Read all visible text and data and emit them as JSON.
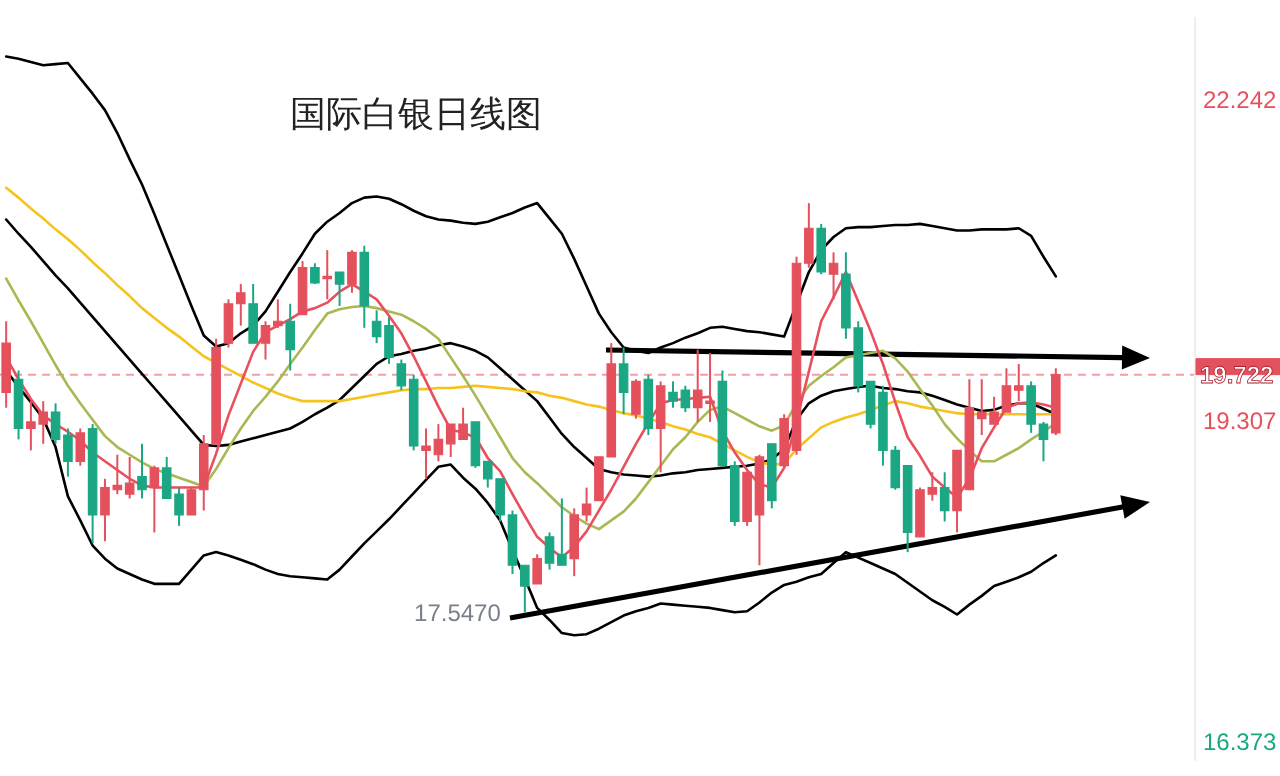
{
  "chart_data": {
    "type": "candlestick",
    "title": "国际白银日线图",
    "categories": [
      null,
      null,
      null,
      null,
      null,
      null,
      null,
      null,
      null,
      null,
      null,
      null,
      null,
      null,
      null,
      null,
      null,
      null,
      null,
      null,
      null,
      null,
      null,
      null,
      null,
      null,
      null,
      null,
      null,
      null,
      null,
      null,
      null,
      null,
      null,
      null,
      null,
      null,
      null,
      null,
      null,
      null,
      null,
      null,
      null,
      null,
      null,
      null,
      null,
      null,
      null,
      null,
      null,
      null,
      null,
      null,
      null,
      null,
      null,
      null,
      null,
      null,
      null,
      null,
      null,
      null,
      null,
      null,
      null,
      null,
      null,
      null,
      null,
      null,
      null,
      null,
      null,
      null,
      null,
      null,
      null,
      null,
      null,
      null,
      null,
      null
    ],
    "ohlc": [
      [
        19.56,
        20.21,
        19.42,
        20.01
      ],
      [
        19.68,
        19.76,
        19.13,
        19.23
      ],
      [
        19.23,
        19.48,
        19.03,
        19.29
      ],
      [
        19.27,
        19.48,
        19.09,
        19.38
      ],
      [
        19.38,
        19.46,
        19.09,
        19.13
      ],
      [
        19.17,
        19.23,
        18.79,
        18.93
      ],
      [
        18.93,
        19.23,
        18.89,
        19.19
      ],
      [
        19.23,
        19.27,
        18.18,
        18.44
      ],
      [
        18.44,
        18.77,
        18.2,
        18.69
      ],
      [
        18.67,
        18.99,
        18.63,
        18.71
      ],
      [
        18.63,
        18.97,
        18.59,
        18.73
      ],
      [
        18.79,
        19.09,
        18.59,
        18.67
      ],
      [
        18.69,
        18.89,
        18.28,
        18.87
      ],
      [
        18.87,
        18.97,
        18.59,
        18.59
      ],
      [
        18.63,
        18.69,
        18.34,
        18.44
      ],
      [
        18.44,
        18.69,
        18.44,
        18.67
      ],
      [
        18.67,
        19.17,
        18.48,
        19.09
      ],
      [
        19.09,
        20.05,
        19.09,
        19.97
      ],
      [
        20.01,
        20.41,
        19.97,
        20.37
      ],
      [
        20.37,
        20.55,
        20.17,
        20.47
      ],
      [
        20.37,
        20.55,
        20.01,
        20.01
      ],
      [
        20.01,
        20.21,
        19.86,
        20.17
      ],
      [
        20.17,
        20.41,
        20.15,
        20.21
      ],
      [
        20.21,
        20.37,
        19.76,
        19.95
      ],
      [
        20.27,
        20.76,
        20.27,
        20.7
      ],
      [
        20.7,
        20.74,
        20.55,
        20.56
      ],
      [
        20.6,
        20.86,
        20.41,
        20.62
      ],
      [
        20.66,
        20.66,
        20.35,
        20.55
      ],
      [
        20.55,
        20.86,
        20.47,
        20.84
      ],
      [
        20.84,
        20.9,
        20.15,
        20.35
      ],
      [
        20.21,
        20.31,
        20.01,
        20.07
      ],
      [
        20.17,
        20.25,
        19.82,
        19.88
      ],
      [
        19.82,
        19.86,
        19.58,
        19.62
      ],
      [
        19.68,
        19.72,
        19.03,
        19.07
      ],
      [
        19.03,
        19.23,
        18.77,
        19.07
      ],
      [
        18.99,
        19.27,
        18.93,
        19.13
      ],
      [
        19.09,
        19.27,
        18.97,
        19.27
      ],
      [
        19.13,
        19.42,
        19.13,
        19.27
      ],
      [
        19.29,
        19.29,
        18.87,
        18.89
      ],
      [
        18.93,
        18.93,
        18.69,
        18.77
      ],
      [
        18.77,
        18.77,
        18.38,
        18.44
      ],
      [
        18.44,
        18.48,
        17.9,
        17.98
      ],
      [
        17.98,
        17.98,
        17.547,
        17.79
      ],
      [
        17.81,
        18.08,
        17.81,
        18.04
      ],
      [
        18.24,
        18.28,
        17.94,
        18.0
      ],
      [
        18.08,
        18.59,
        17.98,
        17.98
      ],
      [
        18.04,
        18.5,
        17.88,
        18.44
      ],
      [
        18.44,
        18.69,
        18.38,
        18.54
      ],
      [
        18.57,
        18.97,
        18.57,
        18.97
      ],
      [
        18.97,
        20.01,
        18.97,
        19.82
      ],
      [
        19.82,
        19.97,
        19.36,
        19.56
      ],
      [
        19.36,
        19.68,
        19.32,
        19.66
      ],
      [
        19.68,
        19.72,
        19.17,
        19.23
      ],
      [
        19.23,
        19.66,
        18.83,
        19.62
      ],
      [
        19.56,
        19.66,
        19.42,
        19.48
      ],
      [
        19.58,
        19.62,
        19.38,
        19.42
      ],
      [
        19.42,
        19.95,
        19.29,
        19.58
      ],
      [
        19.46,
        19.92,
        19.29,
        19.48
      ],
      [
        19.66,
        19.76,
        18.89,
        18.89
      ],
      [
        18.89,
        18.93,
        18.34,
        18.38
      ],
      [
        18.38,
        18.83,
        18.34,
        18.83
      ],
      [
        18.44,
        18.99,
        17.98,
        18.97
      ],
      [
        19.09,
        19.09,
        18.5,
        18.57
      ],
      [
        18.89,
        19.36,
        18.87,
        19.32
      ],
      [
        19.03,
        20.8,
        18.99,
        20.74
      ],
      [
        20.74,
        21.29,
        20.7,
        21.06
      ],
      [
        21.06,
        21.1,
        20.64,
        20.66
      ],
      [
        20.64,
        20.84,
        20.41,
        20.74
      ],
      [
        20.64,
        20.84,
        20.05,
        20.15
      ],
      [
        20.15,
        20.21,
        19.56,
        19.62
      ],
      [
        19.66,
        19.66,
        19.23,
        19.27
      ],
      [
        19.56,
        19.62,
        18.89,
        19.03
      ],
      [
        19.03,
        19.07,
        18.67,
        18.69
      ],
      [
        18.89,
        18.89,
        18.1,
        18.28
      ],
      [
        18.24,
        18.69,
        18.24,
        18.67
      ],
      [
        18.63,
        18.83,
        18.57,
        18.69
      ],
      [
        18.69,
        18.83,
        18.38,
        18.48
      ],
      [
        18.48,
        19.03,
        18.28,
        19.03
      ],
      [
        18.67,
        19.68,
        18.67,
        19.42
      ],
      [
        19.32,
        19.68,
        19.17,
        19.38
      ],
      [
        19.27,
        19.52,
        19.27,
        19.38
      ],
      [
        19.38,
        19.78,
        19.38,
        19.62
      ],
      [
        19.58,
        19.82,
        19.48,
        19.62
      ],
      [
        19.62,
        19.66,
        19.19,
        19.27
      ],
      [
        19.27,
        19.29,
        18.93,
        19.13
      ],
      [
        19.19,
        19.78,
        19.17,
        19.722
      ]
    ],
    "ylim": [
      16.2,
      23.0
    ],
    "yticks": [
      16.373,
      19.307,
      22.242
    ],
    "tick_labels": "y",
    "grid": false,
    "ref_lines": [
      {
        "axis": "y",
        "value": 19.722,
        "label": "19.722",
        "color": "#e5505d",
        "line_style": "dashed"
      }
    ],
    "annotations": [
      "17.5470"
    ],
    "series": [
      {
        "type": "line",
        "color": "#000000",
        "values": [
          22.63,
          22.61,
          22.58,
          22.55,
          22.56,
          22.57,
          22.43,
          22.29,
          22.14,
          21.93,
          21.69,
          21.46,
          21.19,
          20.91,
          20.63,
          20.35,
          20.08,
          19.98,
          20.01,
          20.1,
          20.17,
          20.3,
          20.48,
          20.66,
          20.83,
          21.01,
          21.12,
          21.2,
          21.29,
          21.34,
          21.35,
          21.33,
          21.28,
          21.22,
          21.17,
          21.14,
          21.13,
          21.11,
          21.1,
          21.12,
          21.16,
          21.2,
          21.25,
          21.29,
          21.15,
          21.01,
          20.78,
          20.53,
          20.28,
          20.11,
          19.97,
          19.94,
          19.92,
          19.97,
          20.01,
          20.06,
          20.1,
          20.15,
          20.16,
          20.14,
          20.12,
          20.11,
          20.09,
          20.07,
          null,
          20.66,
          20.86,
          20.98,
          21.06,
          21.07,
          21.07,
          21.08,
          21.09,
          21.09,
          21.1,
          21.08,
          21.06,
          21.04,
          21.04,
          21.05,
          21.05,
          21.05,
          21.06,
          20.99,
          20.8,
          20.62
        ]
      },
      {
        "type": "line",
        "color": "#000000",
        "values": [
          21.14,
          21.01,
          20.89,
          20.76,
          20.63,
          20.51,
          20.38,
          20.25,
          20.12,
          19.99,
          19.86,
          19.73,
          19.6,
          19.47,
          19.34,
          19.21,
          19.08,
          19.07,
          19.08,
          19.11,
          19.14,
          19.17,
          19.2,
          19.23,
          19.29,
          19.36,
          19.42,
          19.49,
          19.6,
          19.71,
          19.82,
          19.89,
          19.91,
          19.94,
          19.96,
          19.99,
          20.01,
          19.98,
          19.94,
          19.88,
          19.78,
          19.68,
          19.58,
          19.48,
          19.33,
          19.18,
          19.06,
          18.96,
          18.86,
          18.83,
          18.81,
          18.8,
          18.79,
          18.8,
          18.82,
          18.83,
          18.85,
          18.86,
          18.87,
          18.88,
          18.89,
          18.91,
          18.95,
          19.04,
          19.31,
          19.46,
          19.53,
          19.57,
          19.59,
          19.61,
          19.62,
          19.6,
          19.59,
          19.57,
          19.56,
          19.53,
          19.49,
          19.45,
          19.42,
          19.39,
          19.4,
          19.44,
          19.46,
          19.46,
          19.41,
          19.36
        ]
      },
      {
        "type": "line",
        "color": "#000000",
        "values": [
          19.76,
          19.61,
          19.47,
          19.32,
          19.06,
          18.61,
          18.39,
          18.16,
          18.04,
          17.95,
          17.9,
          17.85,
          17.81,
          17.81,
          17.81,
          17.94,
          18.07,
          18.1,
          18.07,
          18.03,
          17.99,
          17.94,
          17.9,
          17.88,
          17.87,
          17.86,
          17.85,
          17.94,
          18.06,
          18.18,
          18.29,
          18.4,
          18.52,
          18.64,
          18.76,
          18.88,
          18.9,
          18.78,
          18.68,
          18.55,
          18.39,
          18.12,
          17.86,
          17.59,
          17.48,
          17.36,
          17.34,
          17.35,
          17.4,
          17.46,
          17.52,
          17.56,
          17.59,
          17.63,
          17.62,
          17.61,
          17.6,
          17.59,
          17.57,
          17.55,
          17.56,
          17.64,
          17.73,
          17.8,
          17.83,
          17.87,
          17.9,
          18.0,
          18.1,
          18.05,
          18.0,
          17.95,
          17.9,
          17.82,
          17.74,
          17.66,
          17.6,
          17.53,
          17.62,
          17.7,
          17.79,
          17.83,
          17.87,
          17.92,
          18.0,
          18.07
        ]
      },
      {
        "type": "line",
        "color": "#f5c31c",
        "values": [
          21.43,
          21.34,
          21.24,
          21.15,
          21.05,
          20.96,
          20.86,
          20.75,
          20.65,
          20.54,
          20.44,
          20.33,
          20.24,
          20.15,
          20.07,
          19.98,
          19.89,
          19.83,
          19.77,
          19.71,
          19.65,
          19.6,
          19.55,
          19.51,
          19.48,
          19.48,
          19.48,
          19.48,
          19.5,
          19.52,
          19.54,
          19.56,
          19.58,
          19.59,
          19.59,
          19.6,
          19.6,
          19.61,
          19.62,
          19.61,
          19.6,
          19.59,
          19.57,
          19.56,
          19.53,
          19.51,
          19.48,
          19.45,
          19.43,
          19.4,
          19.37,
          19.35,
          19.32,
          19.29,
          19.25,
          19.22,
          19.18,
          19.15,
          19.09,
          19.03,
          18.97,
          18.92,
          18.9,
          18.91,
          19.04,
          19.14,
          19.24,
          19.29,
          19.33,
          19.36,
          19.4,
          19.44,
          19.48,
          19.46,
          19.43,
          19.41,
          19.39,
          19.37,
          19.36,
          19.36,
          19.36,
          19.36,
          19.36,
          19.36,
          19.36,
          19.36
        ]
      },
      {
        "type": "line",
        "color": "#a9b852",
        "values": [
          20.6,
          20.4,
          20.21,
          20.01,
          19.81,
          19.62,
          19.46,
          19.31,
          19.16,
          19.06,
          18.99,
          18.92,
          18.86,
          18.82,
          18.78,
          18.74,
          18.7,
          18.86,
          19.05,
          19.23,
          19.39,
          19.52,
          19.66,
          19.82,
          19.97,
          20.13,
          20.28,
          20.32,
          20.34,
          20.35,
          20.33,
          20.3,
          20.27,
          20.21,
          20.14,
          20.05,
          19.88,
          19.71,
          19.53,
          19.34,
          19.15,
          18.96,
          18.83,
          18.73,
          18.62,
          18.51,
          18.43,
          18.36,
          18.31,
          18.39,
          18.47,
          18.59,
          18.74,
          18.89,
          19.04,
          19.15,
          19.29,
          19.4,
          19.43,
          19.37,
          19.31,
          19.25,
          19.21,
          19.26,
          19.46,
          19.62,
          19.71,
          19.79,
          19.88,
          19.9,
          19.92,
          19.94,
          19.87,
          19.75,
          19.59,
          19.44,
          19.27,
          19.14,
          19.03,
          18.93,
          18.93,
          18.99,
          19.05,
          19.13,
          19.2,
          19.28
        ]
      },
      {
        "type": "line",
        "color": "#e8505d",
        "values": [
          19.88,
          19.68,
          19.5,
          19.35,
          19.27,
          19.2,
          19.12,
          19.01,
          18.93,
          18.85,
          18.77,
          18.71,
          18.69,
          18.69,
          18.69,
          18.69,
          18.69,
          19.0,
          19.35,
          19.64,
          19.93,
          20.11,
          20.17,
          20.23,
          20.3,
          20.33,
          20.38,
          20.48,
          20.55,
          20.48,
          20.41,
          20.26,
          20.1,
          19.89,
          19.66,
          19.43,
          19.22,
          19.19,
          19.15,
          18.96,
          18.84,
          18.63,
          18.43,
          18.24,
          18.14,
          18.05,
          18.15,
          18.29,
          18.48,
          18.67,
          18.88,
          19.09,
          19.28,
          19.46,
          19.49,
          19.5,
          19.51,
          19.52,
          19.21,
          19.01,
          18.85,
          18.72,
          18.69,
          18.87,
          19.3,
          19.75,
          20.21,
          20.43,
          20.66,
          20.39,
          20.12,
          19.82,
          19.47,
          19.15,
          18.98,
          18.79,
          18.69,
          18.6,
          18.77,
          19.05,
          19.24,
          19.42,
          19.46,
          19.47,
          19.45,
          19.42
        ]
      }
    ]
  }
}
